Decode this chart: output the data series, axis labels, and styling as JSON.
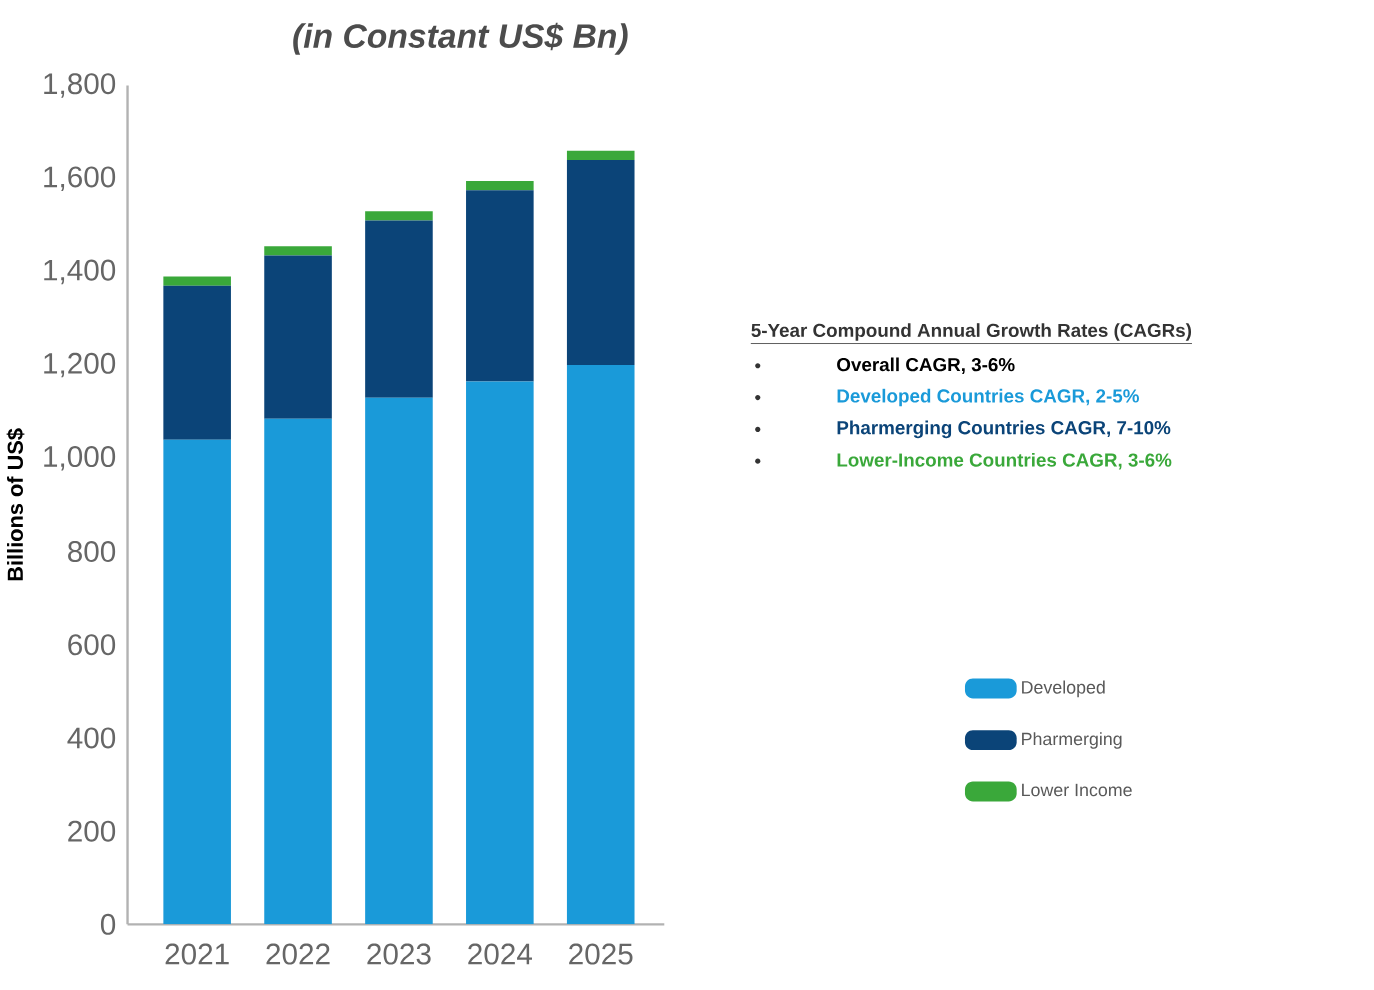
{
  "chart_data": {
    "type": "bar",
    "title": "(in Constant US$ Bn)",
    "ylabel": "Billions of US$",
    "categories": [
      "2021",
      "2022",
      "2023",
      "2024",
      "2025"
    ],
    "stacked": true,
    "series": [
      {
        "name": "Developed",
        "color": "#1a9ad9",
        "values": [
          1040,
          1085,
          1130,
          1165,
          1200
        ]
      },
      {
        "name": "Pharmerging",
        "color": "#0b4478",
        "values": [
          330,
          350,
          380,
          410,
          440
        ]
      },
      {
        "name": "Lower Income",
        "color": "#3aa83a",
        "values": [
          20,
          20,
          20,
          20,
          20
        ]
      }
    ],
    "ylim": [
      0,
      1800
    ],
    "yticks": [
      0,
      200,
      400,
      600,
      800,
      {
        "value": 1000,
        "label": "1,000"
      },
      {
        "value": 1200,
        "label": "1,200"
      },
      {
        "value": 1400,
        "label": "1,400"
      },
      {
        "value": 1600,
        "label": "1,600"
      },
      {
        "value": 1800,
        "label": "1,800"
      }
    ],
    "legend": "right",
    "grid": false,
    "annotations": [
      "5-Year Compound Annual Growth Rates (CAGRs)",
      "Overall CAGR, 3-6%",
      "Developed Countries CAGR, 2-5%",
      "Pharmerging Countries CAGR, 7-10%",
      "Lower-Income Countries CAGR, 3-6%"
    ]
  }
}
